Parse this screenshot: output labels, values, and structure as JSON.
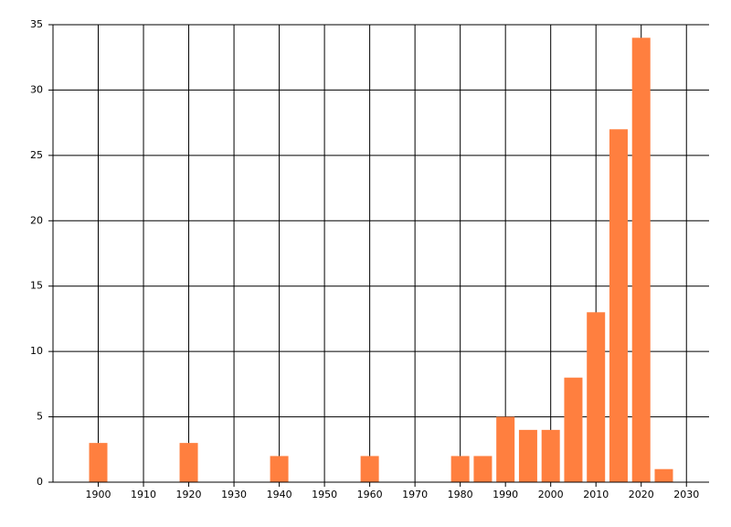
{
  "chart_data": {
    "type": "bar",
    "x": [
      1900,
      1920,
      1940,
      1960,
      1980,
      1985,
      1990,
      1995,
      2000,
      2005,
      2010,
      2015,
      2020,
      2025
    ],
    "values": [
      3,
      3,
      2,
      2,
      2,
      2,
      5,
      4,
      4,
      8,
      13,
      27,
      34,
      1
    ],
    "color": "#ff7f3f",
    "xlim": [
      1890,
      2035
    ],
    "xticks": [
      1900,
      1910,
      1920,
      1930,
      1940,
      1950,
      1960,
      1970,
      1980,
      1990,
      2000,
      2010,
      2020,
      2030
    ],
    "ylim": [
      0,
      35
    ],
    "yticks": [
      0,
      5,
      10,
      15,
      20,
      25,
      30,
      35
    ],
    "grid": true
  }
}
